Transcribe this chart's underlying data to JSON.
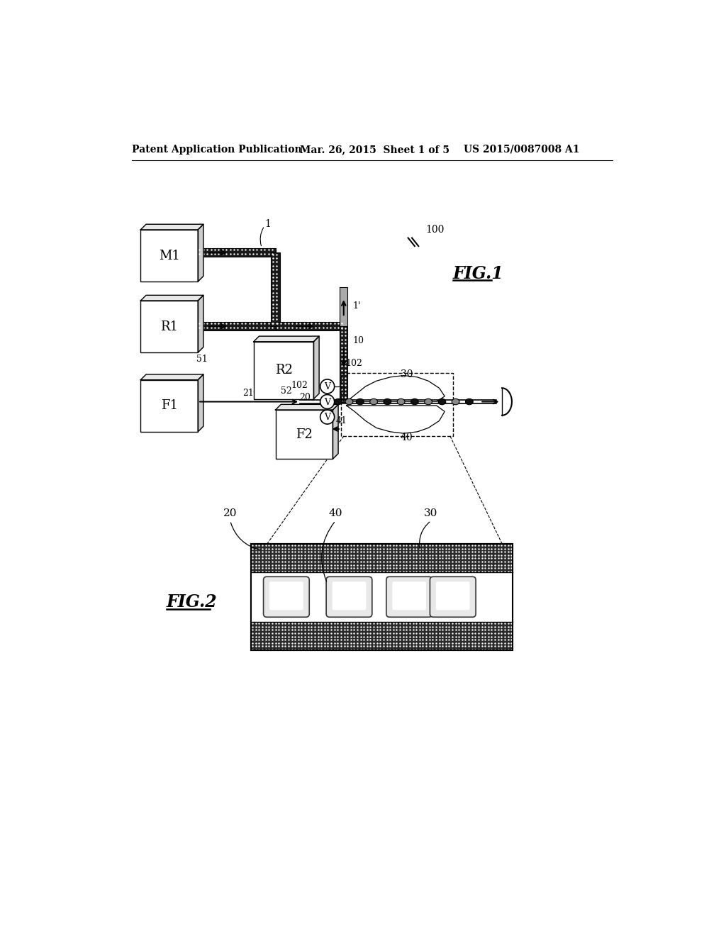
{
  "header_left": "Patent Application Publication",
  "header_mid": "Mar. 26, 2015  Sheet 1 of 5",
  "header_right": "US 2015/0087008 A1",
  "bg_color": "#ffffff",
  "fig1_label": "FIG.1",
  "fig2_label": "FIG.2"
}
